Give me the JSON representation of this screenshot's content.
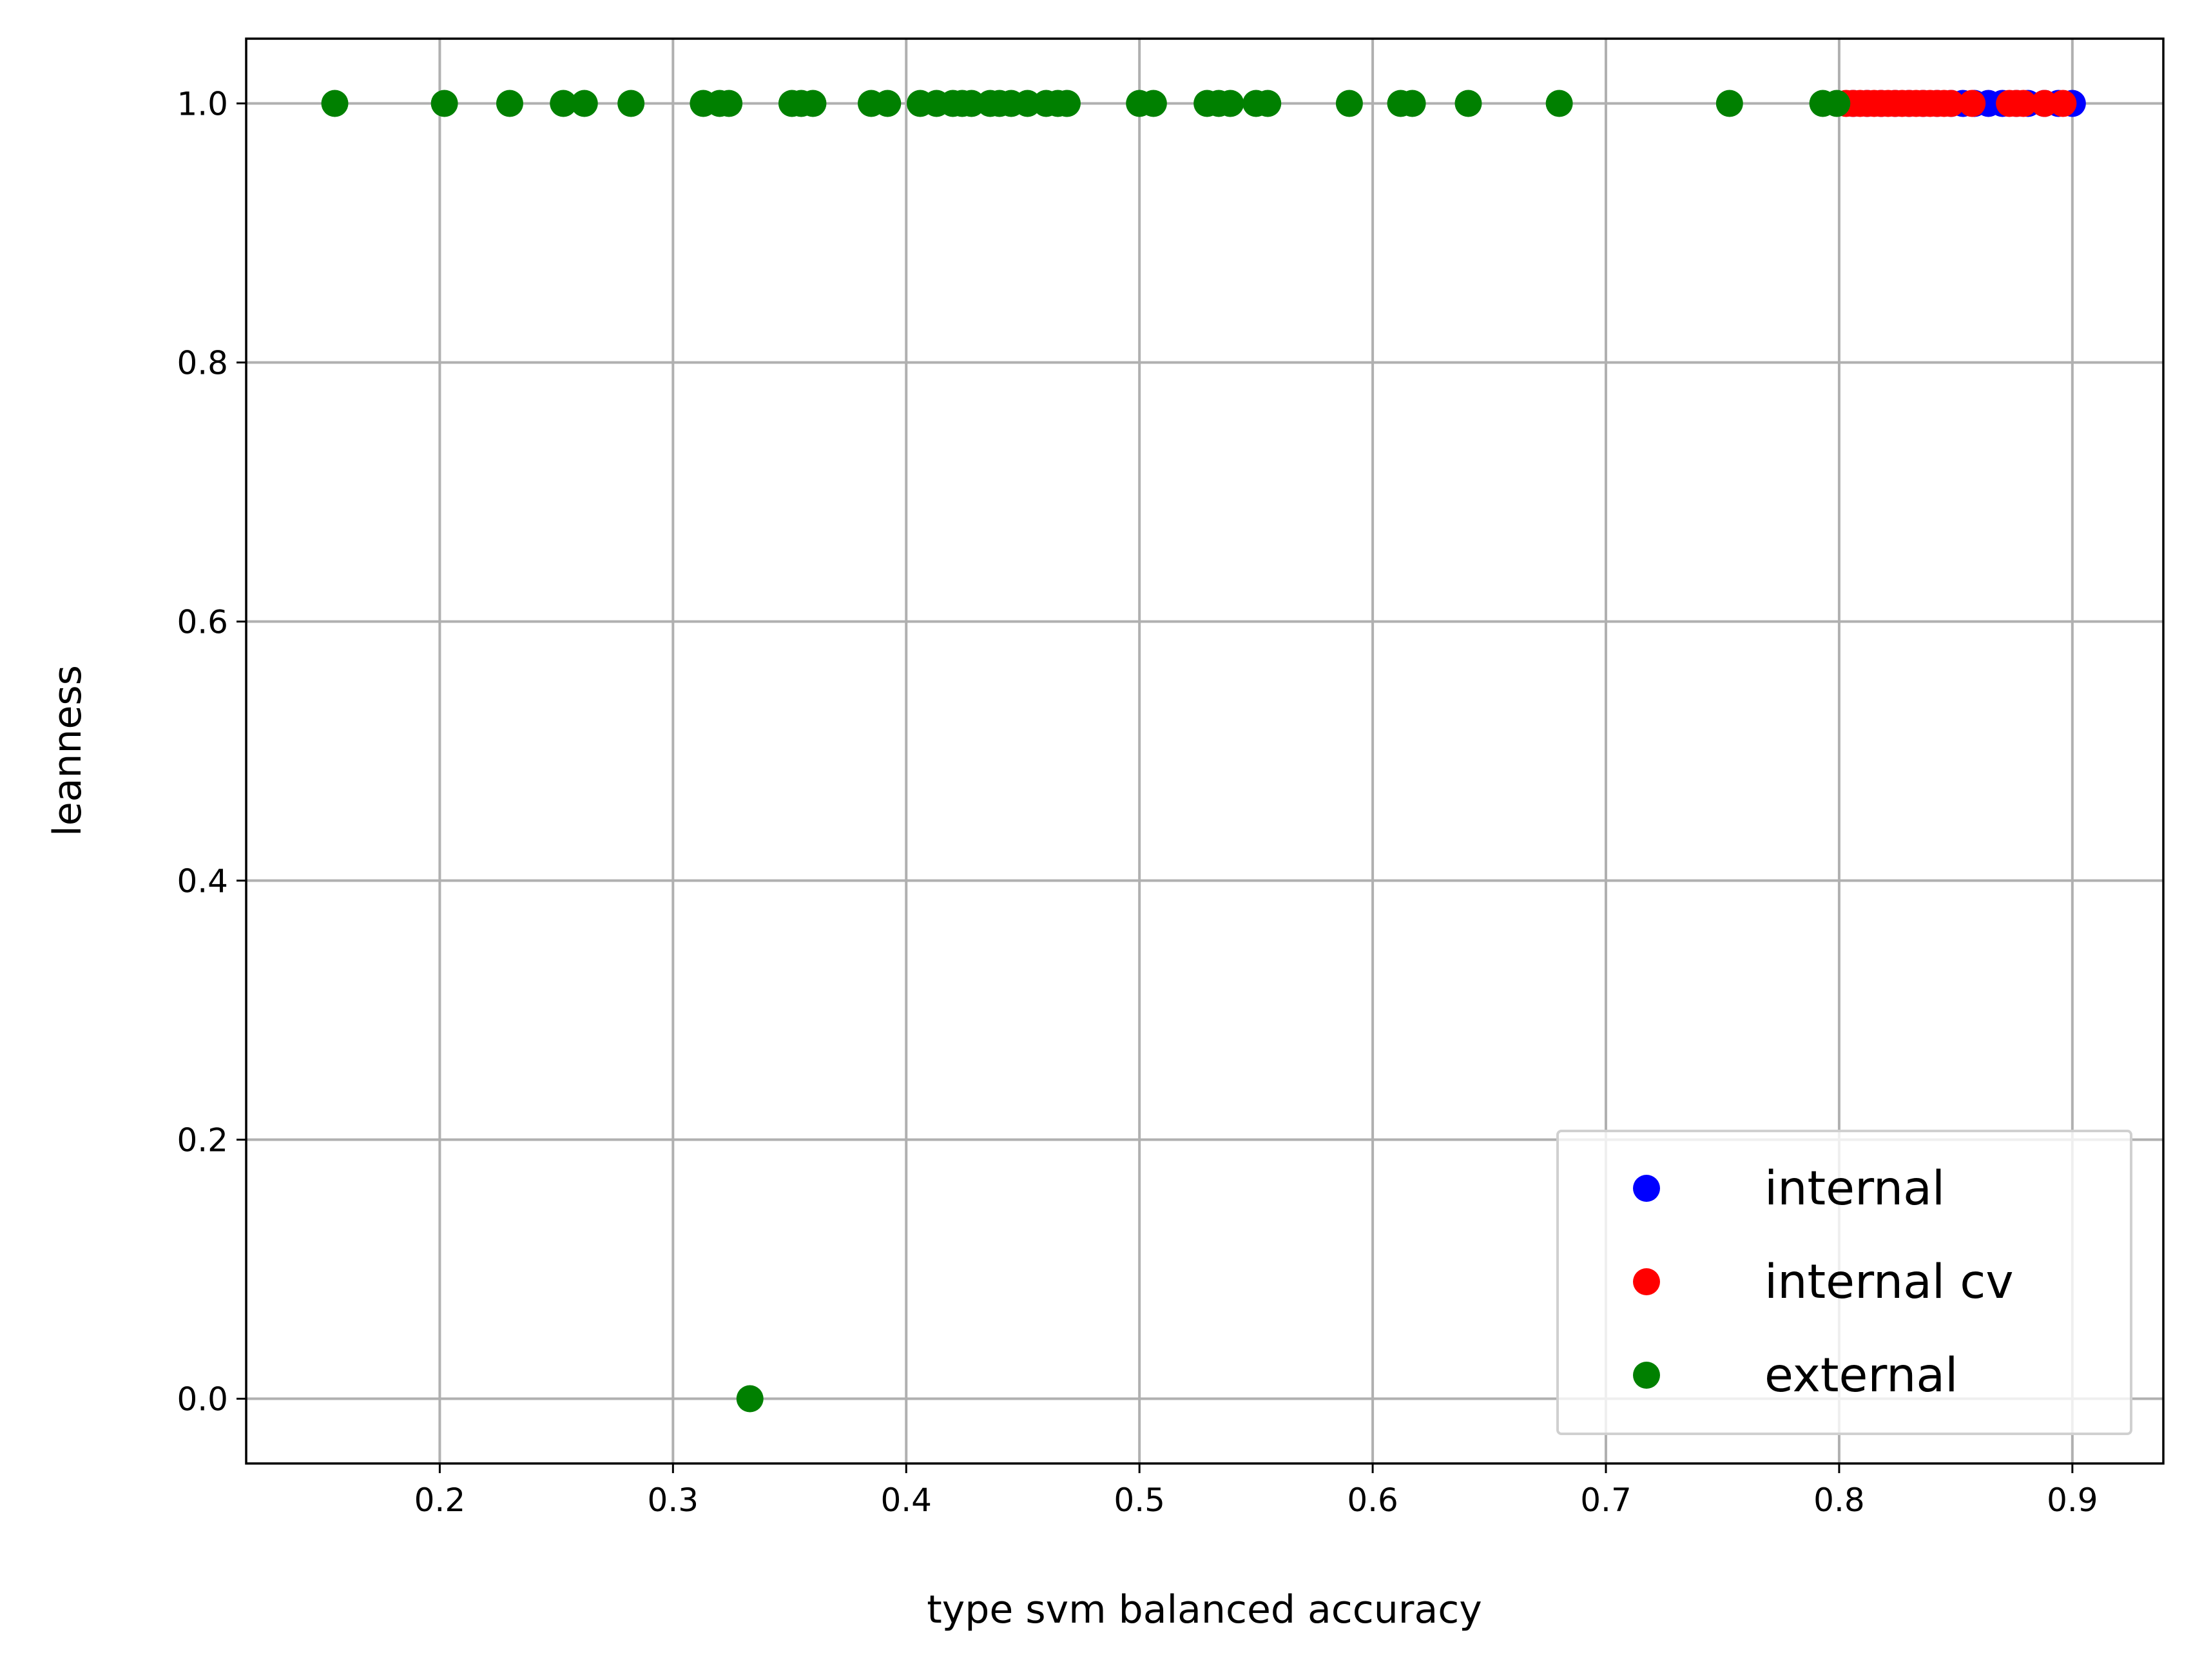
{
  "chart_data": {
    "type": "scatter",
    "xlabel": "type svm balanced accuracy",
    "ylabel": "leanness",
    "xlim": [
      0.117,
      0.939
    ],
    "ylim": [
      -0.05,
      1.05
    ],
    "xticks": [
      0.2,
      0.3,
      0.4,
      0.5,
      0.6,
      0.7,
      0.8,
      0.9
    ],
    "yticks": [
      0.0,
      0.2,
      0.4,
      0.6,
      0.8,
      1.0
    ],
    "xtick_labels": [
      "0.2",
      "0.3",
      "0.4",
      "0.5",
      "0.6",
      "0.7",
      "0.8",
      "0.9"
    ],
    "ytick_labels": [
      "0.0",
      "0.2",
      "0.4",
      "0.6",
      "0.8",
      "1.0"
    ],
    "grid": true,
    "legend_position": "lower right",
    "series": [
      {
        "name": "internal",
        "color": "#0000ff",
        "x": [
          0.806,
          0.812,
          0.818,
          0.824,
          0.83,
          0.836,
          0.842,
          0.848,
          0.853,
          0.858,
          0.864,
          0.87,
          0.876,
          0.881,
          0.888,
          0.894,
          0.9
        ],
        "y": [
          1,
          1,
          1,
          1,
          1,
          1,
          1,
          1,
          1,
          1,
          1,
          1,
          1,
          1,
          1,
          1,
          1
        ]
      },
      {
        "name": "internal cv",
        "color": "#ff0000",
        "x": [
          0.803,
          0.806,
          0.809,
          0.812,
          0.815,
          0.818,
          0.821,
          0.824,
          0.827,
          0.83,
          0.833,
          0.836,
          0.839,
          0.842,
          0.845,
          0.848,
          0.857,
          0.873,
          0.876,
          0.879,
          0.888,
          0.896
        ],
        "y": [
          1,
          1,
          1,
          1,
          1,
          1,
          1,
          1,
          1,
          1,
          1,
          1,
          1,
          1,
          1,
          1,
          1,
          1,
          1,
          1,
          1,
          1
        ]
      },
      {
        "name": "external",
        "color": "#008000",
        "x": [
          0.155,
          0.202,
          0.23,
          0.253,
          0.262,
          0.282,
          0.313,
          0.32,
          0.324,
          0.333,
          0.351,
          0.355,
          0.36,
          0.385,
          0.392,
          0.406,
          0.413,
          0.42,
          0.424,
          0.428,
          0.436,
          0.44,
          0.445,
          0.452,
          0.46,
          0.465,
          0.469,
          0.5,
          0.506,
          0.529,
          0.534,
          0.539,
          0.55,
          0.555,
          0.59,
          0.612,
          0.617,
          0.641,
          0.68,
          0.753,
          0.793,
          0.799
        ],
        "y": [
          1,
          1,
          1,
          1,
          1,
          1,
          1,
          1,
          1,
          0,
          1,
          1,
          1,
          1,
          1,
          1,
          1,
          1,
          1,
          1,
          1,
          1,
          1,
          1,
          1,
          1,
          1,
          1,
          1,
          1,
          1,
          1,
          1,
          1,
          1,
          1,
          1,
          1,
          1,
          1,
          1,
          1
        ]
      }
    ]
  }
}
